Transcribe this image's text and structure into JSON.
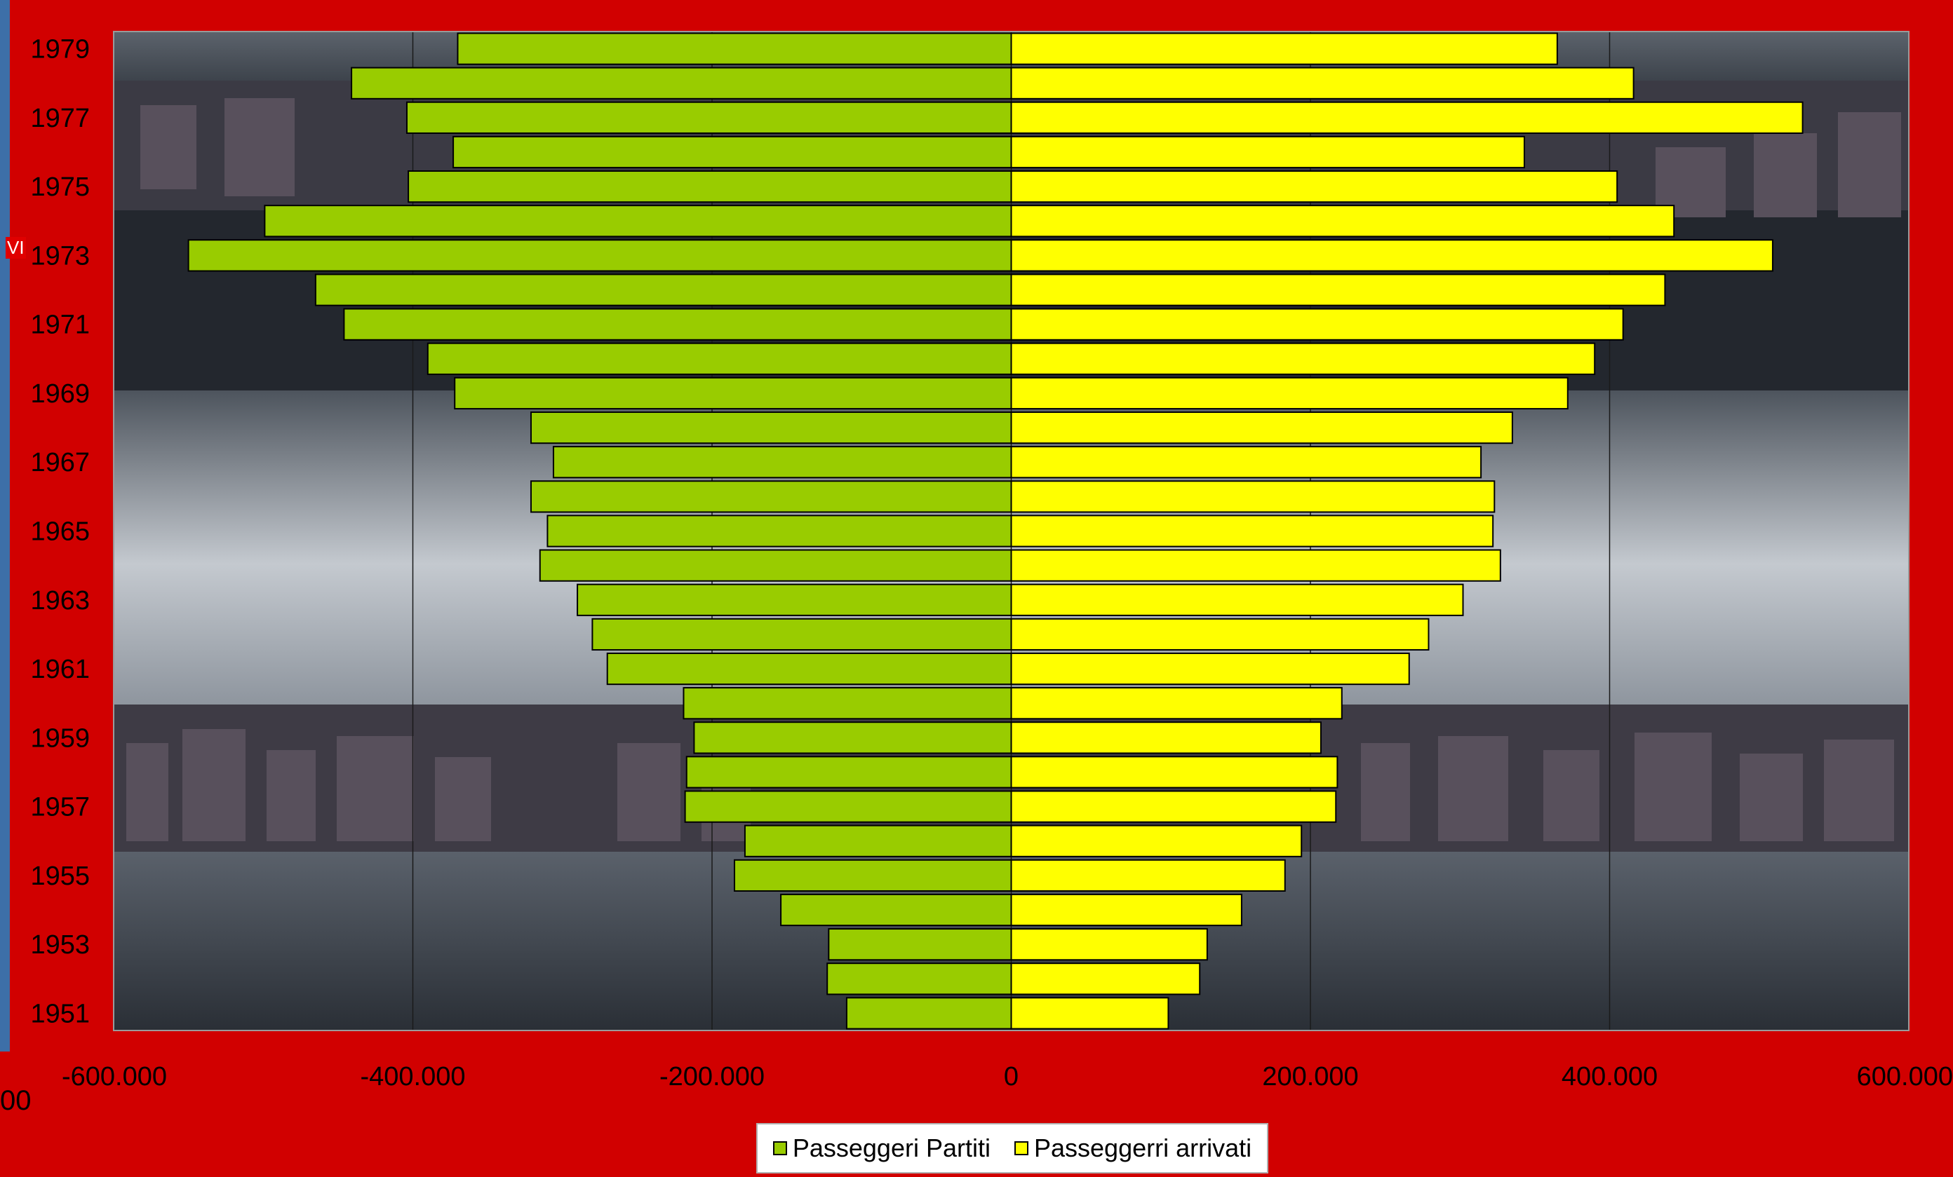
{
  "chart_data": {
    "type": "bar",
    "orientation": "horizontal",
    "categories": [
      "1951",
      "1952",
      "1953",
      "1954",
      "1955",
      "1956",
      "1957",
      "1958",
      "1959",
      "1960",
      "1961",
      "1962",
      "1963",
      "1964",
      "1965",
      "1966",
      "1967",
      "1968",
      "1969",
      "1970",
      "1971",
      "1972",
      "1973",
      "1974",
      "1975",
      "1976",
      "1977",
      "1978",
      "1979"
    ],
    "y_tick_labels": [
      "1951",
      "1953",
      "1955",
      "1957",
      "1959",
      "1961",
      "1963",
      "1965",
      "1967",
      "1969",
      "1971",
      "1973",
      "1975",
      "1977",
      "1979"
    ],
    "series": [
      {
        "name": "Passeggeri Partiti",
        "color": "#99cc00",
        "values": [
          -110000,
          -123000,
          -122000,
          -154000,
          -185000,
          -178000,
          -218000,
          -217000,
          -212000,
          -219000,
          -270000,
          -280000,
          -290000,
          -315000,
          -310000,
          -321000,
          -306000,
          -321000,
          -372000,
          -390000,
          -446000,
          -465000,
          -550000,
          -499000,
          -403000,
          -373000,
          -404000,
          -441000,
          -370000
        ]
      },
      {
        "name": "Passeggerri arrivati",
        "color": "#ffff00",
        "values": [
          105000,
          126000,
          131000,
          154000,
          183000,
          194000,
          217000,
          218000,
          207000,
          221000,
          266000,
          279000,
          302000,
          327000,
          322000,
          323000,
          314000,
          335000,
          372000,
          390000,
          409000,
          437000,
          509000,
          443000,
          405000,
          343000,
          529000,
          416000,
          365000
        ]
      }
    ],
    "x_ticks": [
      -600000,
      -400000,
      -200000,
      0,
      200000,
      400000,
      600000
    ],
    "x_tick_labels": [
      "-600.000",
      "-400.000",
      "-200.000",
      "0",
      "200.000",
      "400.000",
      "600.000"
    ],
    "xlim": [
      -600000,
      600000
    ],
    "grid": "vertical",
    "legend_position": "bottom",
    "title": "",
    "xlabel": "",
    "ylabel": ""
  },
  "edge_labels": {
    "left_fragment": "00",
    "side_fragment": "VI"
  },
  "colors": {
    "background": "#d10000",
    "plot_backdrop": "#2b313a",
    "sky": "#a9afb7",
    "water": "#3a4048"
  }
}
